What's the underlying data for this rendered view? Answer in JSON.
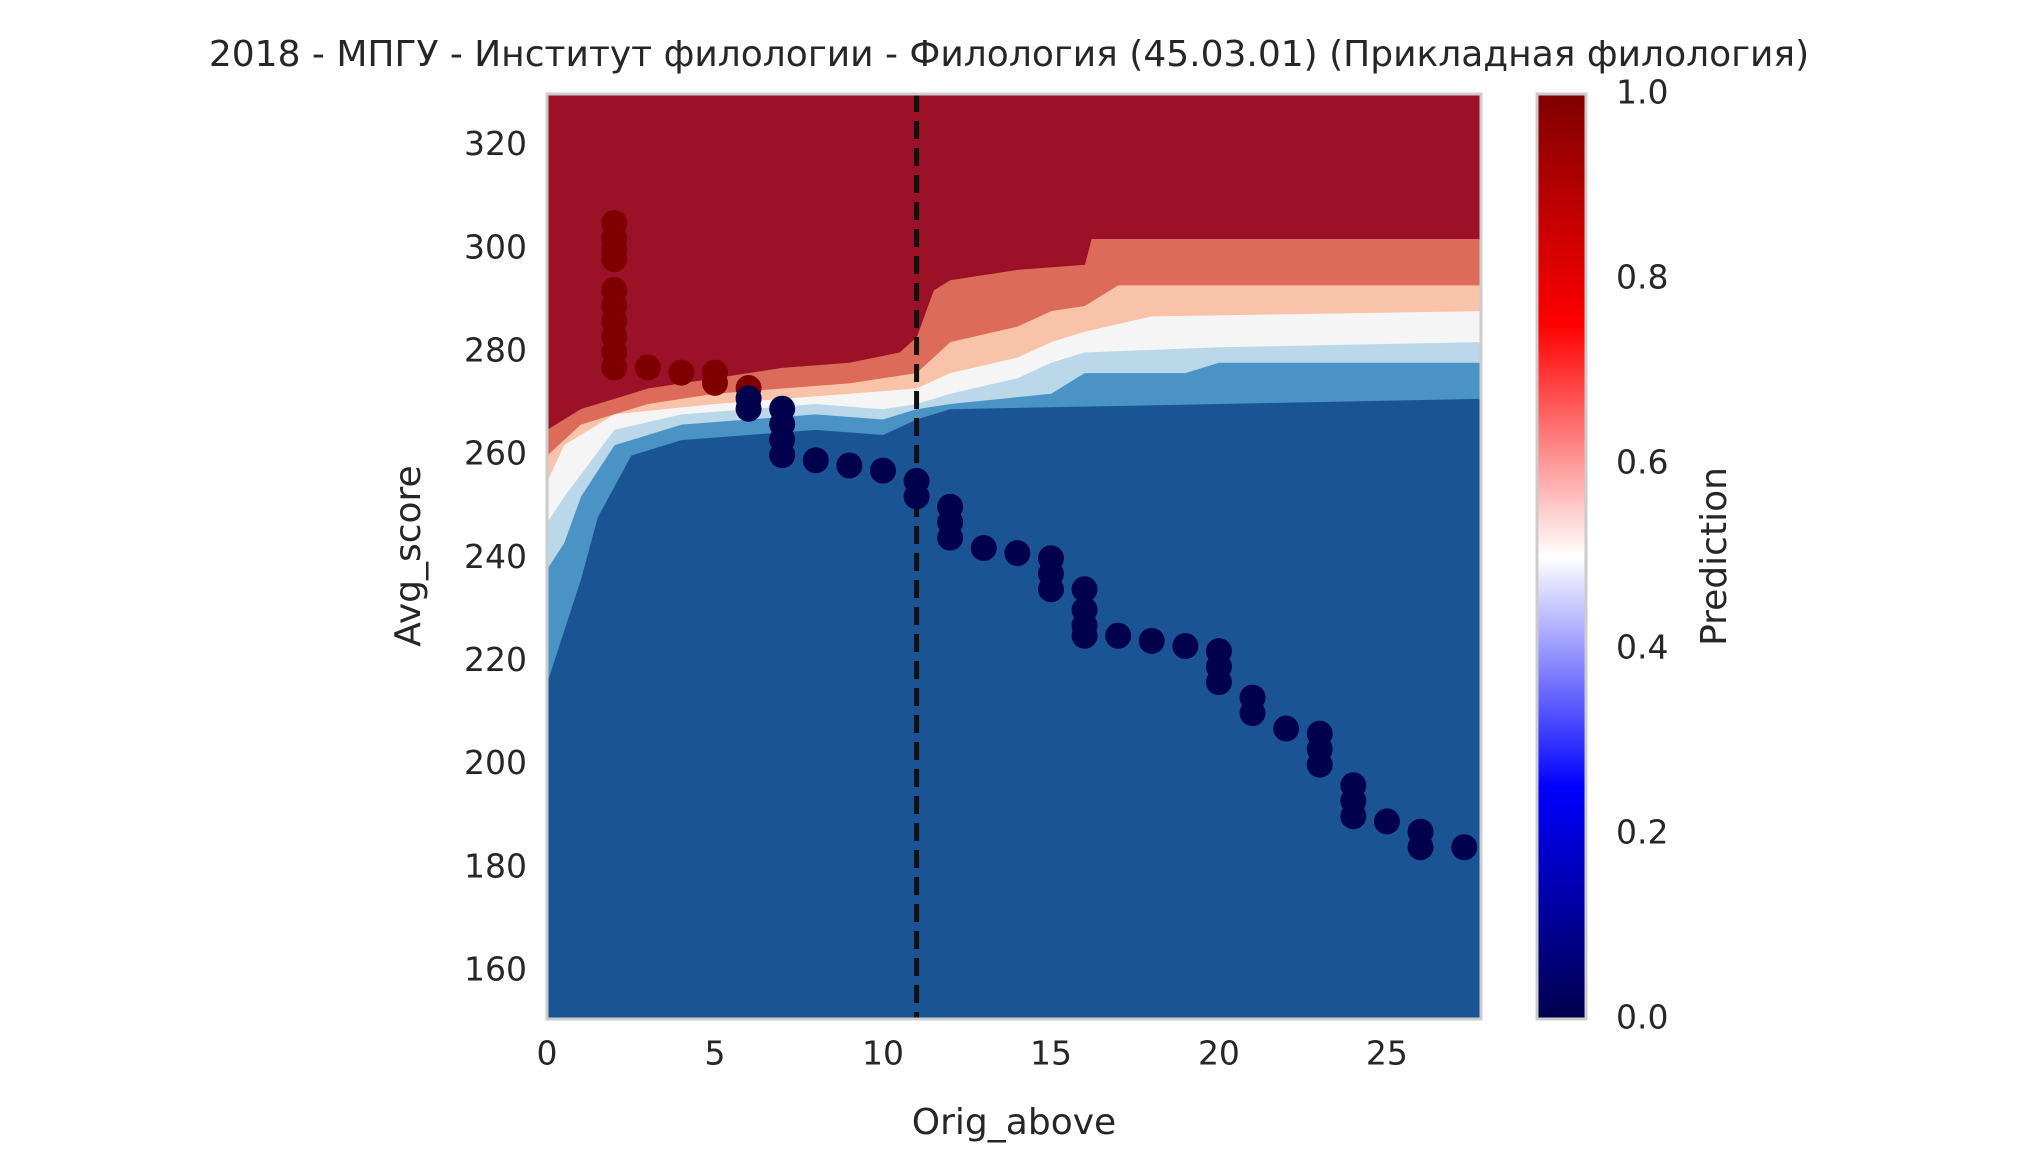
{
  "chart_data": {
    "type": "contour",
    "title": "2018 - МПГУ - Институт филологии - Филология (45.03.01) (Прикладная филология)",
    "x_label": "Orig_above",
    "y_label": "Avg_score",
    "xlim": [
      0,
      27.8
    ],
    "ylim": [
      150.7,
      330
    ],
    "xticks": [
      0,
      5,
      10,
      15,
      20,
      25
    ],
    "yticks": [
      160,
      180,
      200,
      220,
      240,
      260,
      280,
      300,
      320
    ],
    "vline": 11,
    "background_color": "#1b5494",
    "contours": [
      {
        "color": "#4a94c5",
        "x": [
          0,
          0.5,
          1,
          1.5,
          2.5,
          4,
          8,
          10,
          11,
          12,
          20,
          27.8
        ],
        "y": [
          216,
          226,
          236,
          248,
          260,
          263,
          265,
          264,
          267,
          269,
          270,
          271
        ]
      },
      {
        "color": "#bbd8ea",
        "x": [
          0,
          0.5,
          1,
          2,
          4,
          8,
          10,
          11,
          12,
          15,
          16,
          19,
          20,
          27.8
        ],
        "y": [
          238,
          243,
          252,
          262,
          266,
          268,
          267,
          269,
          270,
          272,
          276,
          276,
          278,
          278
        ]
      },
      {
        "color": "#f5f5f5",
        "x": [
          0,
          0.5,
          2,
          4,
          8,
          10,
          11,
          12,
          14,
          15,
          16,
          20,
          27.8
        ],
        "y": [
          247,
          252,
          265,
          268,
          270,
          269,
          270,
          272,
          275,
          278,
          280,
          281,
          282
        ]
      },
      {
        "color": "#f8c3a8",
        "x": [
          0,
          0.5,
          2,
          5,
          7,
          9,
          11,
          12,
          14,
          15,
          16,
          18,
          27.8
        ],
        "y": [
          255,
          262,
          268,
          270,
          271,
          272,
          273,
          276,
          279,
          282,
          284,
          287,
          288
        ]
      },
      {
        "color": "#dc6c59",
        "x": [
          0,
          1,
          3,
          5,
          7,
          9,
          11,
          12,
          14,
          15,
          16,
          17,
          27.8
        ],
        "y": [
          260,
          266,
          270,
          272,
          273,
          274,
          276,
          282,
          285,
          288,
          289,
          293,
          293
        ]
      },
      {
        "color": "#9b1128",
        "x": [
          0,
          1,
          3,
          5,
          7,
          9,
          10.5,
          11,
          11.5,
          12,
          14,
          16,
          16.2,
          27.8
        ],
        "y": [
          265,
          269,
          273,
          275,
          277,
          278,
          280,
          283,
          292,
          294,
          296,
          297,
          302,
          302
        ]
      }
    ],
    "points": {
      "x": [
        2,
        2,
        2,
        2,
        2,
        2,
        2,
        2,
        2,
        2,
        3,
        4,
        5,
        5,
        6,
        6,
        6,
        7,
        7,
        7,
        7,
        8,
        9,
        10,
        11,
        11,
        12,
        12,
        12,
        13,
        14,
        15,
        15,
        15,
        16,
        16,
        16,
        16,
        17,
        18,
        19,
        20,
        20,
        20,
        21,
        21,
        22,
        23,
        23,
        23,
        24,
        24,
        24,
        25,
        26,
        26,
        27.3
      ],
      "y": [
        277,
        280,
        283,
        286,
        289,
        292,
        298,
        300,
        302,
        305,
        277,
        276,
        274,
        276,
        273,
        271,
        269,
        269,
        266,
        263,
        260,
        259,
        258,
        257,
        255,
        252,
        250,
        247,
        244,
        242,
        241,
        240,
        237,
        234,
        234,
        230,
        227,
        225,
        225,
        224,
        223,
        222,
        219,
        216,
        213,
        210,
        207,
        206,
        203,
        200,
        196,
        193,
        190,
        189,
        187,
        184,
        184
      ],
      "values": [
        1,
        1,
        1,
        1,
        1,
        1,
        1,
        1,
        1,
        1,
        1,
        1,
        1,
        1,
        1,
        0,
        0,
        0,
        0,
        0,
        0,
        0,
        0,
        0,
        0,
        0,
        0,
        0,
        0,
        0,
        0,
        0,
        0,
        0,
        0,
        0,
        0,
        0,
        0,
        0,
        0,
        0,
        0,
        0,
        0,
        0,
        0,
        0,
        0,
        0,
        0,
        0,
        0,
        0,
        0,
        0,
        0
      ]
    },
    "colorbar": {
      "label": "Prediction",
      "lim": [
        0,
        1
      ],
      "colors": [
        "#00004c",
        "#0000ff",
        "#ffffff",
        "#ff0000",
        "#7f0000"
      ],
      "ticks": [
        {
          "value": 0,
          "label": "0.0"
        },
        {
          "value": 0.2,
          "label": "0.2"
        },
        {
          "value": 0.4,
          "label": "0.4"
        },
        {
          "value": 0.6,
          "label": "0.6"
        },
        {
          "value": 0.8,
          "label": "0.8"
        },
        {
          "value": 1,
          "label": "1.0"
        }
      ]
    }
  }
}
